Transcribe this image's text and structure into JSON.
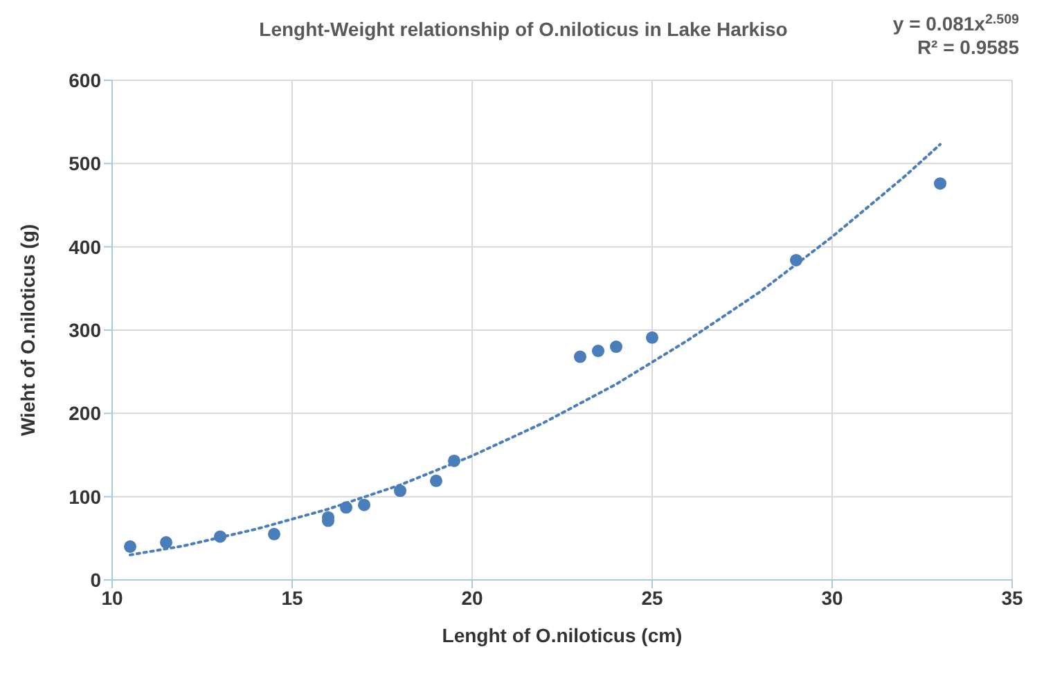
{
  "chart_data": {
    "type": "scatter",
    "title": "Lenght-Weight relationship of O.niloticus  in Lake Harkiso",
    "xlabel": "Lenght of O.niloticus (cm)",
    "ylabel": "Wieht of O.niloticus (g)",
    "annotations": [
      "y = 0.081x$^{2.509}$",
      "R² = 0.9585"
    ],
    "series": [
      {
        "color": "#4a7ebb",
        "x": [
          10.5,
          11.5,
          13,
          14.5,
          16,
          16,
          16.5,
          17,
          18,
          19,
          19.5,
          23,
          23.5,
          24,
          25,
          29,
          33
        ],
        "values": [
          40,
          45,
          52,
          55,
          75,
          71,
          87,
          90,
          107,
          119,
          143,
          268,
          275,
          280,
          291,
          384,
          476
        ]
      },
      {
        "type": "line",
        "color": "#4a7ebb",
        "line_style": "dotted",
        "marker": "none",
        "x": [
          10.5,
          12,
          14,
          16,
          18,
          20,
          22,
          24,
          26,
          28,
          30,
          32,
          33
        ],
        "values": [
          30,
          41,
          61,
          85,
          114,
          149,
          189,
          235,
          288,
          346,
          412,
          484,
          523
        ]
      }
    ],
    "xlim": [
      10,
      35
    ],
    "xticks": [
      10,
      15,
      20,
      25,
      30,
      35
    ],
    "ylim": [
      0,
      600
    ],
    "yticks": [
      0,
      100,
      200,
      300,
      400,
      500,
      600
    ],
    "grid": true,
    "marker": "circle"
  }
}
